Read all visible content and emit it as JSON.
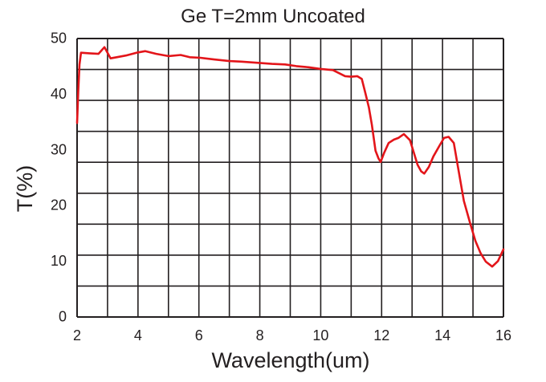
{
  "chart_data": {
    "type": "line",
    "title": "Ge T=2mm Uncoated",
    "xlabel": "Wavelength(um)",
    "ylabel": "T(%)",
    "xlim": [
      2,
      16
    ],
    "ylim": [
      0,
      50
    ],
    "xticks": [
      2,
      4,
      6,
      8,
      10,
      12,
      14,
      16
    ],
    "yticks": [
      0,
      10,
      20,
      30,
      40,
      50
    ],
    "grid": true,
    "grid_columns": 14,
    "grid_rows": 9,
    "legend": null,
    "series": [
      {
        "name": "Ge T=2mm Uncoated",
        "color": "#e3151a",
        "x": [
          2.0,
          2.04,
          2.08,
          2.13,
          2.4,
          2.7,
          2.9,
          3.1,
          3.3,
          3.6,
          3.95,
          4.24,
          4.6,
          5.0,
          5.4,
          5.7,
          6.05,
          6.5,
          7.0,
          7.4,
          7.9,
          8.4,
          8.83,
          9.2,
          9.6,
          10.0,
          10.4,
          10.8,
          11.0,
          11.2,
          11.35,
          11.46,
          11.58,
          11.68,
          11.8,
          11.9,
          11.97,
          12.08,
          12.23,
          12.4,
          12.55,
          12.73,
          12.93,
          13.05,
          13.18,
          13.3,
          13.4,
          13.55,
          13.7,
          13.9,
          14.05,
          14.2,
          14.37,
          14.5,
          14.7,
          14.9,
          15.08,
          15.25,
          15.42,
          15.63,
          15.82,
          16.0
        ],
        "values": [
          34.7,
          40.5,
          45.2,
          47.3,
          47.2,
          47.1,
          48.3,
          46.3,
          46.5,
          46.8,
          47.3,
          47.6,
          47.1,
          46.7,
          46.9,
          46.5,
          46.4,
          46.1,
          45.8,
          45.7,
          45.5,
          45.3,
          45.2,
          44.9,
          44.7,
          44.4,
          44.2,
          43.1,
          43.0,
          43.1,
          42.6,
          40.2,
          37.5,
          34.4,
          29.7,
          28.3,
          27.7,
          29.3,
          31.1,
          31.7,
          32.0,
          32.7,
          31.6,
          29.5,
          27.2,
          26.0,
          25.6,
          26.8,
          28.7,
          30.6,
          32.0,
          32.2,
          31.1,
          27.0,
          20.7,
          16.8,
          13.5,
          11.3,
          9.8,
          8.9,
          9.9,
          12.0
        ]
      }
    ]
  },
  "colors": {
    "line": "#e3151a",
    "grid": "#231f20",
    "text": "#231f20",
    "background": "#ffffff"
  }
}
